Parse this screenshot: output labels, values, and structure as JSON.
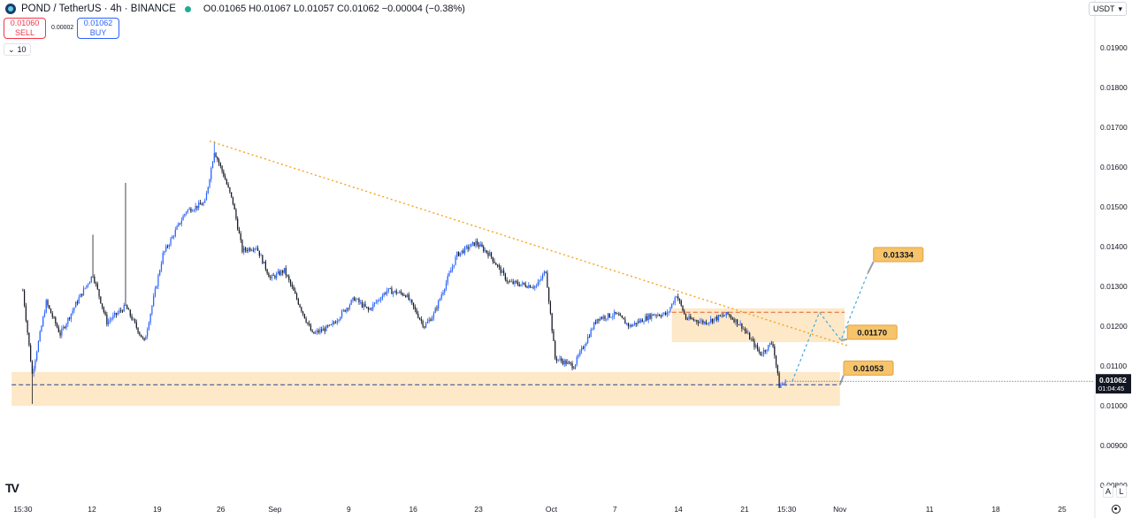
{
  "header": {
    "title": "POND / TetherUS · 4h · BINANCE",
    "ohlc": "O0.01065 H0.01067 L0.01057 C0.01062 −0.00004 (−0.38%)"
  },
  "trade": {
    "sell_price": "0.01060",
    "sell_label": "SELL",
    "spread": "0.00002",
    "buy_price": "0.01062",
    "buy_label": "BUY"
  },
  "volume_toggle": {
    "label": "10",
    "icon": "chevron-down-icon"
  },
  "currency_selector": {
    "label": "USDT",
    "icon": "chevron-down-icon"
  },
  "corner_buttons": {
    "auto": "A",
    "log": "L",
    "settings_icon": "gear-icon"
  },
  "colors": {
    "up_candle": "#2962ff",
    "down_candle": "#131722",
    "trendline": "#f7a21b",
    "zone_fill": "#fde8c8",
    "label_fill": "#f6c46a",
    "projection": "#4aa8d8",
    "price_tag": "#131722"
  },
  "chart_data": {
    "type": "candlestick",
    "pair": "POND / TetherUS",
    "interval": "4h",
    "exchange": "BINANCE",
    "y_ticks": [
      "0.01900",
      "0.01800",
      "0.01700",
      "0.01600",
      "0.01500",
      "0.01400",
      "0.01300",
      "0.01200",
      "0.01100",
      "0.01000",
      "0.00900",
      "0.00800"
    ],
    "ylim": [
      0.00765,
      0.01975
    ],
    "x_ticks": [
      "15:30",
      "12",
      "19",
      "26",
      "Sep",
      "9",
      "16",
      "23",
      "Oct",
      "7",
      "14",
      "21",
      "15:30",
      "Nov",
      "11",
      "18",
      "25"
    ],
    "x_tick_days": [
      0,
      7.4,
      14.4,
      21.2,
      27.0,
      34.9,
      41.8,
      48.8,
      56.6,
      63.4,
      70.2,
      77.3,
      81.8,
      87.5,
      97.1,
      104.2,
      111.3
    ],
    "xlim": [
      -1.5,
      114.8
    ],
    "last_day": 81.8,
    "price_path": [
      [
        0,
        0.0129
      ],
      [
        1,
        0.0108
      ],
      [
        2.5,
        0.0126
      ],
      [
        4,
        0.0118
      ],
      [
        6,
        0.0127
      ],
      [
        7.5,
        0.0133
      ],
      [
        9,
        0.0121
      ],
      [
        11,
        0.0125
      ],
      [
        13,
        0.0116
      ],
      [
        15,
        0.0138
      ],
      [
        17.5,
        0.0149
      ],
      [
        19.5,
        0.0151
      ],
      [
        20.5,
        0.0164
      ],
      [
        21.5,
        0.0158
      ],
      [
        22.5,
        0.0151
      ],
      [
        23.5,
        0.0139
      ],
      [
        25,
        0.014
      ],
      [
        26.5,
        0.0132
      ],
      [
        28,
        0.0134
      ],
      [
        29.5,
        0.0126
      ],
      [
        31,
        0.0118
      ],
      [
        33,
        0.012
      ],
      [
        35.5,
        0.0127
      ],
      [
        37,
        0.0124
      ],
      [
        39,
        0.0129
      ],
      [
        41,
        0.0128
      ],
      [
        43,
        0.012
      ],
      [
        44,
        0.0123
      ],
      [
        46.5,
        0.0138
      ],
      [
        48.5,
        0.0141
      ],
      [
        50,
        0.0138
      ],
      [
        52,
        0.0131
      ],
      [
        55,
        0.013
      ],
      [
        56,
        0.0134
      ],
      [
        57,
        0.0112
      ],
      [
        59,
        0.011
      ],
      [
        61.5,
        0.0122
      ],
      [
        63.5,
        0.0123
      ],
      [
        65,
        0.012
      ],
      [
        67.5,
        0.0123
      ],
      [
        69,
        0.0123
      ],
      [
        70,
        0.0128
      ],
      [
        71,
        0.0122
      ],
      [
        73,
        0.0121
      ],
      [
        75.5,
        0.0123
      ],
      [
        77,
        0.012
      ],
      [
        79,
        0.0113
      ],
      [
        80.3,
        0.0116
      ],
      [
        81,
        0.0105
      ],
      [
        81.8,
        0.01062
      ]
    ],
    "price_high": 0.01665,
    "price_low": 0.01005,
    "last_price": "0.01062",
    "countdown": "01:04:45",
    "support_zone": [
      0.01,
      0.01085
    ],
    "support_line": 0.01053,
    "resistance_zone": [
      0.0116,
      0.01245
    ],
    "resistance_line": 0.01235,
    "trendline": [
      [
        20,
        0.01665
      ],
      [
        88.5,
        0.0115
      ]
    ],
    "projection": [
      [
        82.4,
        0.01062
      ],
      [
        85.3,
        0.01235
      ],
      [
        87.6,
        0.01165
      ],
      [
        90.5,
        0.01334
      ]
    ],
    "annotations": [
      {
        "label": "0.01334",
        "day": 91.1,
        "price": 0.0138
      },
      {
        "label": "0.01170",
        "day": 88.3,
        "price": 0.01185
      },
      {
        "label": "0.01053",
        "day": 87.9,
        "price": 0.01095
      }
    ]
  }
}
